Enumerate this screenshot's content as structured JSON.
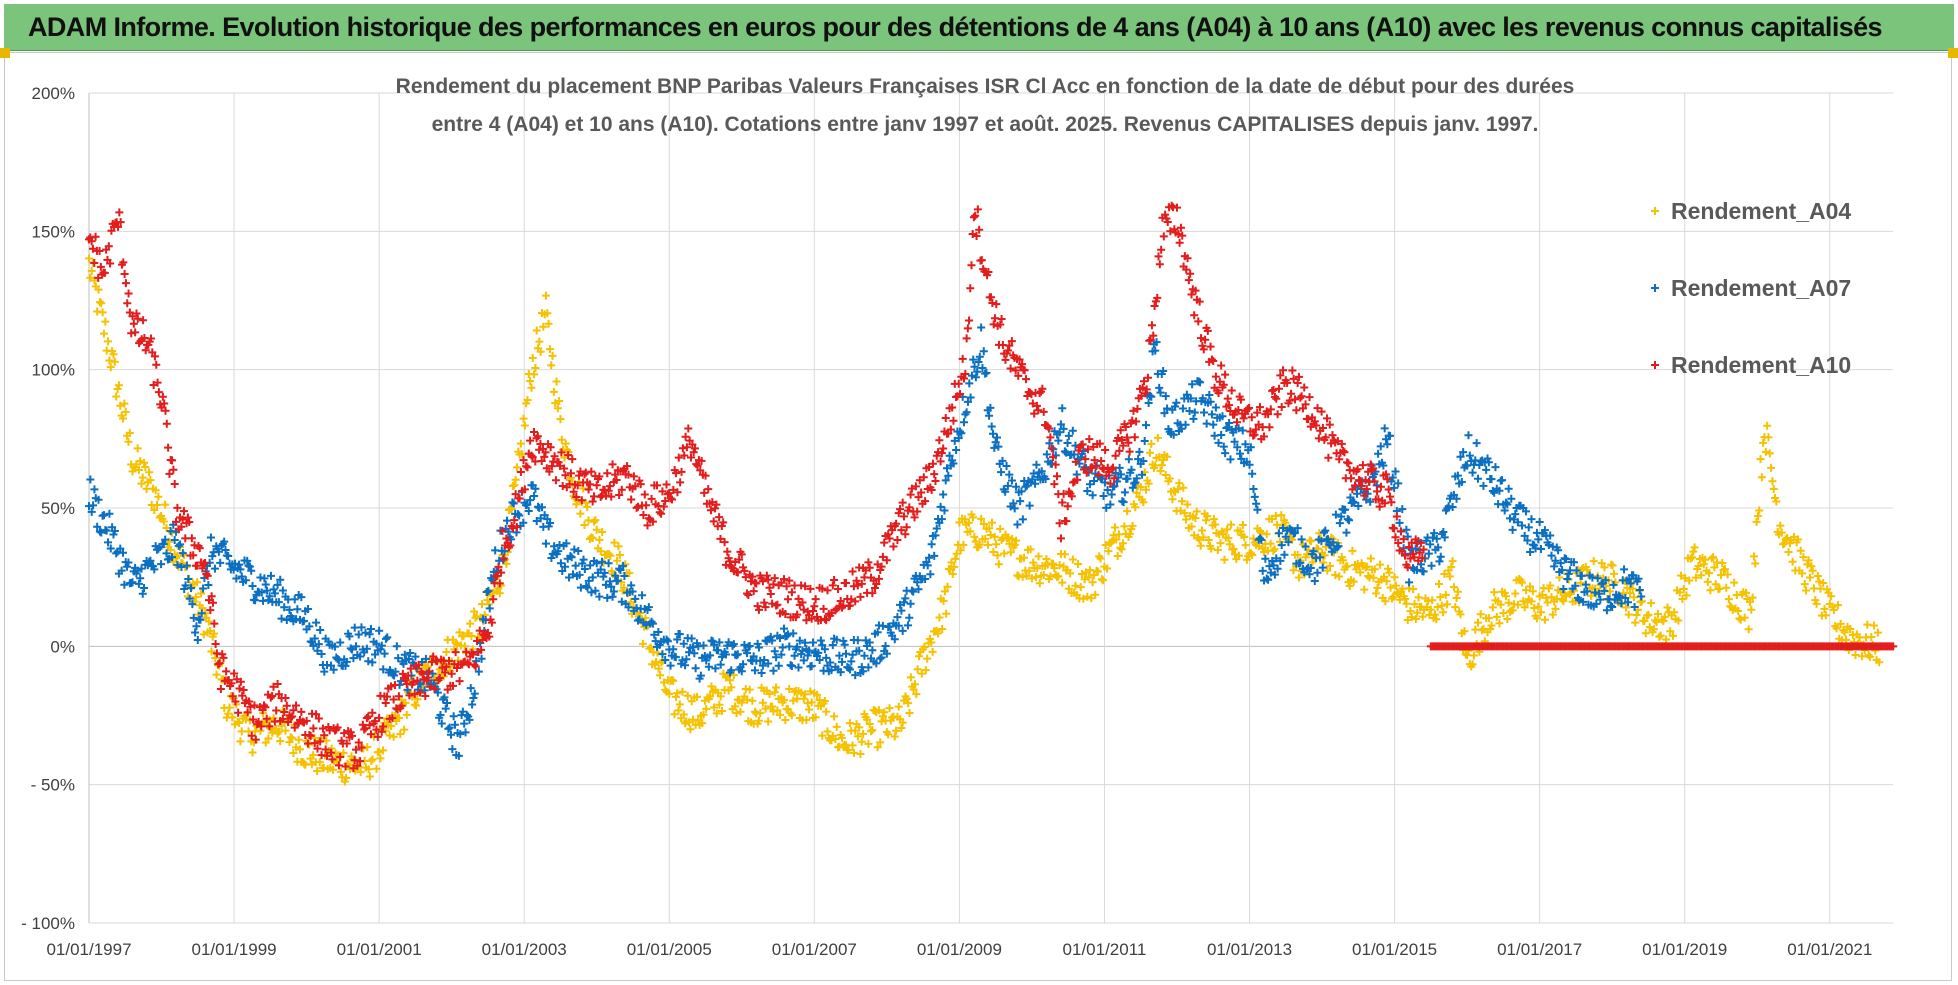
{
  "header": {
    "title": "ADAM Informe. Evolution historique des performances en euros pour des détentions de 4 ans (A04) à 10 ans (A10) avec les revenus connus capitalisés"
  },
  "colors": {
    "header_background": "#7ac47b",
    "series_a04": "#f5c100",
    "series_a07": "#0b6fc2",
    "series_a10": "#e31c1c",
    "gridline": "#d9d9d9"
  },
  "chart_data": {
    "type": "scatter",
    "marker": "plus",
    "title_lines": [
      "Rendement du placement BNP Paribas Valeurs Françaises ISR Cl Acc en fonction de la date de début pour des durées",
      "entre 4 (A04) et 10 ans (A10). Cotations entre janv 1997 et août. 2025. Revenus CAPITALISES depuis janv. 1997."
    ],
    "x_axis": {
      "type": "date",
      "range": [
        "1997-01-01",
        "2021-11-15"
      ],
      "ticks": [
        "01/01/1997",
        "01/01/1999",
        "01/01/2001",
        "01/01/2003",
        "01/01/2005",
        "01/01/2007",
        "01/01/2009",
        "01/01/2011",
        "01/01/2013",
        "01/01/2015",
        "01/01/2017",
        "01/01/2019",
        "01/01/2021"
      ]
    },
    "y_axis": {
      "unit": "percent",
      "range": [
        -100,
        200
      ],
      "ticks": [
        200,
        150,
        100,
        50,
        0,
        -50,
        -100
      ],
      "tick_labels": [
        "200%",
        "150%",
        "100%",
        "50%",
        "0%",
        "- 50%",
        "- 100%"
      ]
    },
    "grid": true,
    "legend_position": "top-right",
    "series": [
      {
        "name": "Rendement_A04",
        "color": "#f5c100",
        "points": [
          [
            1997.0,
            138
          ],
          [
            1997.3,
            105
          ],
          [
            1997.6,
            68
          ],
          [
            1997.9,
            55
          ],
          [
            1998.2,
            35
          ],
          [
            1998.6,
            10
          ],
          [
            1998.9,
            -20
          ],
          [
            1999.2,
            -32
          ],
          [
            1999.6,
            -28
          ],
          [
            2000.0,
            -38
          ],
          [
            2000.4,
            -42
          ],
          [
            2000.8,
            -43
          ],
          [
            2001.2,
            -30
          ],
          [
            2001.6,
            -12
          ],
          [
            2002.0,
            -2
          ],
          [
            2002.4,
            8
          ],
          [
            2002.7,
            28
          ],
          [
            2002.9,
            60
          ],
          [
            2003.1,
            100
          ],
          [
            2003.3,
            120
          ],
          [
            2003.5,
            80
          ],
          [
            2003.7,
            58
          ],
          [
            2004.0,
            40
          ],
          [
            2004.3,
            30
          ],
          [
            2004.6,
            10
          ],
          [
            2005.0,
            -18
          ],
          [
            2005.4,
            -25
          ],
          [
            2005.8,
            -15
          ],
          [
            2006.2,
            -22
          ],
          [
            2006.6,
            -20
          ],
          [
            2007.0,
            -22
          ],
          [
            2007.4,
            -35
          ],
          [
            2007.8,
            -30
          ],
          [
            2008.2,
            -28
          ],
          [
            2008.5,
            -5
          ],
          [
            2008.8,
            15
          ],
          [
            2009.0,
            40
          ],
          [
            2009.3,
            42
          ],
          [
            2009.6,
            35
          ],
          [
            2010.0,
            30
          ],
          [
            2010.4,
            28
          ],
          [
            2010.8,
            22
          ],
          [
            2011.2,
            40
          ],
          [
            2011.5,
            55
          ],
          [
            2011.7,
            72
          ],
          [
            2011.9,
            60
          ],
          [
            2012.2,
            45
          ],
          [
            2012.6,
            38
          ],
          [
            2013.0,
            38
          ],
          [
            2013.4,
            42
          ],
          [
            2013.7,
            30
          ],
          [
            2014.0,
            35
          ],
          [
            2014.4,
            28
          ],
          [
            2014.8,
            25
          ],
          [
            2015.2,
            15
          ],
          [
            2015.5,
            12
          ],
          [
            2015.8,
            25
          ],
          [
            2016.0,
            -5
          ],
          [
            2016.3,
            12
          ],
          [
            2016.7,
            18
          ],
          [
            2017.0,
            15
          ],
          [
            2017.4,
            20
          ],
          [
            2017.8,
            25
          ],
          [
            2018.1,
            22
          ],
          [
            2018.5,
            10
          ],
          [
            2018.8,
            8
          ],
          [
            2019.1,
            30
          ],
          [
            2019.5,
            25
          ],
          [
            2019.9,
            12
          ],
          [
            2020.1,
            80
          ],
          [
            2020.3,
            45
          ],
          [
            2020.6,
            30
          ],
          [
            2021.0,
            12
          ],
          [
            2021.3,
            3
          ],
          [
            2021.7,
            0
          ]
        ]
      },
      {
        "name": "Rendement_A07",
        "color": "#0b6fc2",
        "points": [
          [
            1997.0,
            55
          ],
          [
            1997.3,
            40
          ],
          [
            1997.6,
            22
          ],
          [
            1997.9,
            30
          ],
          [
            1998.2,
            38
          ],
          [
            1998.5,
            8
          ],
          [
            1998.7,
            35
          ],
          [
            1998.9,
            30
          ],
          [
            1999.2,
            25
          ],
          [
            1999.6,
            18
          ],
          [
            2000.0,
            10
          ],
          [
            2000.3,
            -5
          ],
          [
            2000.7,
            2
          ],
          [
            2001.0,
            0
          ],
          [
            2001.3,
            -8
          ],
          [
            2001.7,
            -12
          ],
          [
            2001.9,
            -25
          ],
          [
            2002.1,
            -35
          ],
          [
            2002.3,
            -15
          ],
          [
            2002.6,
            30
          ],
          [
            2002.8,
            45
          ],
          [
            2003.1,
            55
          ],
          [
            2003.3,
            40
          ],
          [
            2003.6,
            30
          ],
          [
            2004.0,
            25
          ],
          [
            2004.4,
            22
          ],
          [
            2004.7,
            10
          ],
          [
            2005.0,
            0
          ],
          [
            2005.4,
            -5
          ],
          [
            2005.8,
            -3
          ],
          [
            2006.2,
            -5
          ],
          [
            2006.6,
            0
          ],
          [
            2007.0,
            -2
          ],
          [
            2007.4,
            -5
          ],
          [
            2007.8,
            -2
          ],
          [
            2008.2,
            10
          ],
          [
            2008.6,
            30
          ],
          [
            2008.9,
            70
          ],
          [
            2009.1,
            90
          ],
          [
            2009.3,
            110
          ],
          [
            2009.5,
            70
          ],
          [
            2009.8,
            50
          ],
          [
            2010.1,
            60
          ],
          [
            2010.4,
            80
          ],
          [
            2010.8,
            60
          ],
          [
            2011.1,
            55
          ],
          [
            2011.5,
            65
          ],
          [
            2011.7,
            108
          ],
          [
            2011.9,
            80
          ],
          [
            2012.3,
            90
          ],
          [
            2012.7,
            75
          ],
          [
            2013.0,
            70
          ],
          [
            2013.2,
            25
          ],
          [
            2013.5,
            40
          ],
          [
            2013.9,
            30
          ],
          [
            2014.3,
            45
          ],
          [
            2014.7,
            60
          ],
          [
            2014.9,
            75
          ],
          [
            2015.2,
            30
          ],
          [
            2015.6,
            35
          ],
          [
            2016.0,
            70
          ],
          [
            2016.3,
            62
          ],
          [
            2016.7,
            45
          ],
          [
            2017.0,
            38
          ],
          [
            2017.4,
            25
          ],
          [
            2017.8,
            18
          ],
          [
            2018.2,
            22
          ],
          [
            2018.4,
            18
          ]
        ]
      },
      {
        "name": "Rendement_A10",
        "color": "#e31c1c",
        "points": [
          [
            1997.0,
            148
          ],
          [
            1997.2,
            135
          ],
          [
            1997.4,
            155
          ],
          [
            1997.6,
            115
          ],
          [
            1997.8,
            110
          ],
          [
            1998.0,
            90
          ],
          [
            1998.2,
            50
          ],
          [
            1998.4,
            38
          ],
          [
            1998.6,
            30
          ],
          [
            1998.8,
            -8
          ],
          [
            1999.0,
            -15
          ],
          [
            1999.3,
            -28
          ],
          [
            1999.6,
            -20
          ],
          [
            2000.0,
            -28
          ],
          [
            2000.3,
            -35
          ],
          [
            2000.7,
            -38
          ],
          [
            2001.0,
            -25
          ],
          [
            2001.4,
            -15
          ],
          [
            2001.8,
            -10
          ],
          [
            2002.2,
            -8
          ],
          [
            2002.5,
            5
          ],
          [
            2002.7,
            35
          ],
          [
            2002.9,
            50
          ],
          [
            2003.1,
            75
          ],
          [
            2003.4,
            68
          ],
          [
            2003.7,
            60
          ],
          [
            2004.0,
            55
          ],
          [
            2004.4,
            62
          ],
          [
            2004.7,
            50
          ],
          [
            2005.0,
            55
          ],
          [
            2005.3,
            75
          ],
          [
            2005.5,
            55
          ],
          [
            2005.8,
            35
          ],
          [
            2006.2,
            20
          ],
          [
            2006.6,
            18
          ],
          [
            2007.0,
            15
          ],
          [
            2007.4,
            18
          ],
          [
            2007.8,
            25
          ],
          [
            2008.2,
            45
          ],
          [
            2008.6,
            60
          ],
          [
            2008.9,
            85
          ],
          [
            2009.1,
            105
          ],
          [
            2009.2,
            160
          ],
          [
            2009.4,
            130
          ],
          [
            2009.6,
            110
          ],
          [
            2009.9,
            95
          ],
          [
            2010.2,
            85
          ],
          [
            2010.4,
            45
          ],
          [
            2010.7,
            70
          ],
          [
            2011.1,
            65
          ],
          [
            2011.4,
            80
          ],
          [
            2011.6,
            100
          ],
          [
            2011.8,
            150
          ],
          [
            2012.0,
            155
          ],
          [
            2012.2,
            130
          ],
          [
            2012.5,
            100
          ],
          [
            2012.9,
            82
          ],
          [
            2013.2,
            80
          ],
          [
            2013.5,
            95
          ],
          [
            2013.9,
            85
          ],
          [
            2014.2,
            68
          ],
          [
            2014.6,
            60
          ],
          [
            2014.9,
            55
          ],
          [
            2015.2,
            30
          ],
          [
            2015.4,
            35
          ]
        ]
      }
    ],
    "zero_line_series": {
      "name": "Rendement_A10",
      "x_range": [
        2015.5,
        2021.9
      ],
      "value": 0
    }
  }
}
